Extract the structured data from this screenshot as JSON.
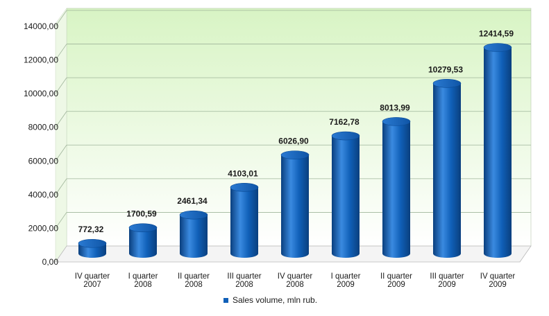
{
  "chart_data": {
    "type": "bar",
    "title": "",
    "xlabel": "",
    "ylabel": "",
    "ylim": [
      0,
      14000
    ],
    "yticks": [
      "0,00",
      "2000,00",
      "4000,00",
      "6000,00",
      "8000,00",
      "10000,00",
      "12000,00",
      "14000,00"
    ],
    "grid": true,
    "legend_position": "bottom",
    "categories": [
      [
        "IV quarter",
        "2007"
      ],
      [
        "I quarter",
        "2008"
      ],
      [
        "II quarter",
        "2008"
      ],
      [
        "III quarter",
        "2008"
      ],
      [
        "IV quarter",
        "2008"
      ],
      [
        "I quarter",
        "2009"
      ],
      [
        "II quarter",
        "2009"
      ],
      [
        "III quarter",
        "2009"
      ],
      [
        "IV quarter",
        "2009"
      ]
    ],
    "series": [
      {
        "name": "Sales volume, mln rub.",
        "values": [
          772.32,
          1700.59,
          2461.34,
          4103.01,
          6026.9,
          7162.78,
          8013.99,
          10279.53,
          12414.59
        ],
        "labels": [
          "772,32",
          "1700,59",
          "2461,34",
          "4103,01",
          "6026,90",
          "7162,78",
          "8013,99",
          "10279,53",
          "12414,59"
        ]
      }
    ],
    "colors": {
      "bar": "#1060b8",
      "bar_dark": "#0a3f7e",
      "bar_light": "#3a8ae0",
      "top": "#1f74cc",
      "wall_top": "#d8f4c4",
      "wall_bottom": "#ffffff",
      "grid": "#9fb59a"
    }
  }
}
